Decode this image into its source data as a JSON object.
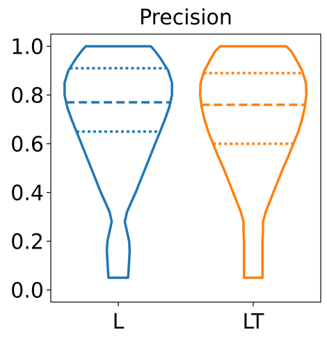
{
  "chart_data": {
    "type": "violin",
    "title": "Precision",
    "xlabel": "",
    "ylabel": "",
    "categories": [
      "L",
      "LT"
    ],
    "ylim": [
      -0.05,
      1.05
    ],
    "yticks": [
      0.0,
      0.2,
      0.4,
      0.6,
      0.8,
      1.0
    ],
    "ytick_labels": [
      "0.0",
      "0.2",
      "0.4",
      "0.6",
      "0.8",
      "1.0"
    ],
    "grid": false,
    "series": [
      {
        "name": "L",
        "color": "#1f77b4",
        "min": 0.05,
        "max": 1.0,
        "q1": 0.65,
        "median": 0.77,
        "q3": 0.91,
        "density": [
          [
            0.05,
            0.18
          ],
          [
            0.08,
            0.19
          ],
          [
            0.12,
            0.2
          ],
          [
            0.16,
            0.21
          ],
          [
            0.2,
            0.2
          ],
          [
            0.24,
            0.16
          ],
          [
            0.28,
            0.12
          ],
          [
            0.32,
            0.16
          ],
          [
            0.36,
            0.24
          ],
          [
            0.4,
            0.32
          ],
          [
            0.45,
            0.41
          ],
          [
            0.5,
            0.5
          ],
          [
            0.55,
            0.59
          ],
          [
            0.6,
            0.68
          ],
          [
            0.65,
            0.77
          ],
          [
            0.7,
            0.86
          ],
          [
            0.75,
            0.94
          ],
          [
            0.8,
            0.99
          ],
          [
            0.85,
            0.99
          ],
          [
            0.9,
            0.92
          ],
          [
            0.95,
            0.78
          ],
          [
            0.98,
            0.68
          ],
          [
            1.0,
            0.6
          ]
        ]
      },
      {
        "name": "LT",
        "color": "#ff7f0e",
        "min": 0.05,
        "max": 1.0,
        "q1": 0.6,
        "median": 0.76,
        "q3": 0.89,
        "density": [
          [
            0.05,
            0.17
          ],
          [
            0.08,
            0.17
          ],
          [
            0.12,
            0.17
          ],
          [
            0.16,
            0.17
          ],
          [
            0.2,
            0.17
          ],
          [
            0.24,
            0.18
          ],
          [
            0.28,
            0.18
          ],
          [
            0.32,
            0.23
          ],
          [
            0.36,
            0.3
          ],
          [
            0.4,
            0.37
          ],
          [
            0.45,
            0.46
          ],
          [
            0.5,
            0.55
          ],
          [
            0.55,
            0.65
          ],
          [
            0.6,
            0.74
          ],
          [
            0.65,
            0.83
          ],
          [
            0.7,
            0.9
          ],
          [
            0.75,
            0.95
          ],
          [
            0.8,
            0.98
          ],
          [
            0.85,
            0.97
          ],
          [
            0.9,
            0.9
          ],
          [
            0.95,
            0.78
          ],
          [
            0.98,
            0.7
          ],
          [
            1.0,
            0.61
          ]
        ]
      }
    ]
  }
}
